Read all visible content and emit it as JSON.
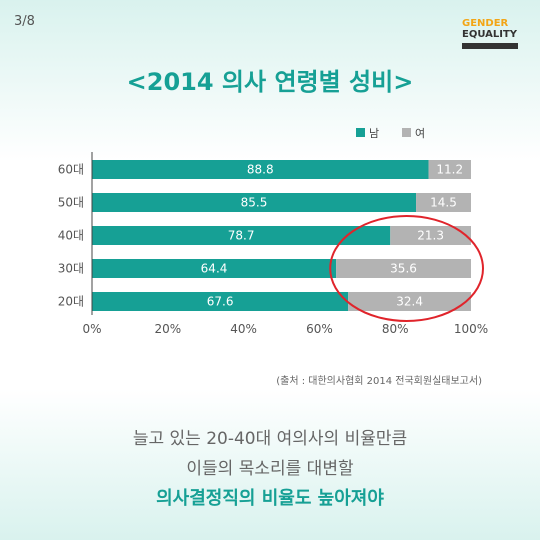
{
  "page_number": "3/8",
  "logo": {
    "line1": "GENDER",
    "line2": "EQUALITY"
  },
  "source": "(출처 : 대한의사협회 2014 전국회원실태보고서)",
  "captions": [
    "늘고 있는 20-40대 여의사의 비율만큼",
    "이들의 목소리를 대변할",
    "의사결정직의 비율도 높아져야"
  ],
  "colors": {
    "male": "#16a095",
    "female": "#b3b3b3",
    "highlight": "#e0242b",
    "title": "#16a095"
  },
  "chart_data": {
    "type": "bar",
    "orientation": "horizontal",
    "stacked": true,
    "title": "<2014 의사 연령별 성비>",
    "categories": [
      "60대",
      "50대",
      "40대",
      "30대",
      "20대"
    ],
    "series": [
      {
        "name": "남",
        "values": [
          88.8,
          85.5,
          78.7,
          64.4,
          67.6
        ],
        "labels": [
          "88.8",
          "85.5",
          "78.7",
          "64.4",
          "67.6"
        ]
      },
      {
        "name": "여",
        "values": [
          11.2,
          14.5,
          21.3,
          35.6,
          32.4
        ],
        "labels": [
          "11.2",
          "14.5",
          "21.3",
          "35.6",
          "32.4"
        ]
      }
    ],
    "xlim": [
      0,
      100
    ],
    "xticks": [
      0,
      20,
      40,
      60,
      80,
      100
    ],
    "xtick_labels": [
      "0%",
      "20%",
      "40%",
      "60%",
      "80%",
      "100%"
    ],
    "legend": {
      "position": "top-right",
      "entries": [
        "남",
        "여"
      ]
    },
    "annotation": "red ellipse highlighting 40대, 30대, 20대 female share",
    "grid": false
  }
}
